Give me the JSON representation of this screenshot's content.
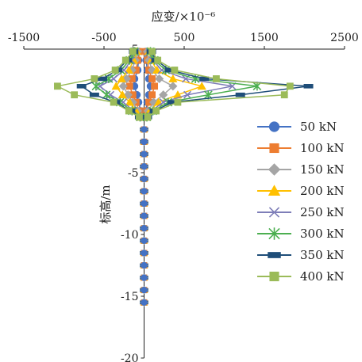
{
  "chart_data": {
    "type": "line",
    "xlabel": "应变/×10⁻⁶",
    "ylabel": "标高/m",
    "xlim": [
      -1500,
      2500
    ],
    "ylim": [
      -20,
      5
    ],
    "x_ticks": [
      "-1500",
      "-500",
      "500",
      "1500",
      "2500"
    ],
    "y_ticks": [
      "5",
      "0",
      "-5",
      "-10",
      "-15",
      "-20"
    ],
    "x_tick_values": [
      -1500,
      -500,
      500,
      1500,
      2500
    ],
    "y_tick_values": [
      5,
      0,
      -5,
      -10,
      -15,
      -20
    ],
    "legend_position": "right",
    "grid": false,
    "series": [
      {
        "name": "50 kN",
        "color": "#4472C4",
        "marker": "circle",
        "left": [
          [
            -60,
            4.8
          ],
          [
            -70,
            4.1
          ],
          [
            -80,
            3.3
          ],
          [
            -120,
            2.6
          ],
          [
            -120,
            2.0
          ],
          [
            -90,
            1.3
          ],
          [
            -70,
            0.7
          ],
          [
            -40,
            0.0
          ],
          [
            -20,
            -0.5
          ]
        ],
        "right": [
          [
            20,
            4.8
          ],
          [
            25,
            4.1
          ],
          [
            40,
            3.3
          ],
          [
            60,
            2.6
          ],
          [
            80,
            2.0
          ],
          [
            60,
            1.3
          ],
          [
            40,
            0.7
          ],
          [
            20,
            0.0
          ],
          [
            10,
            -0.5
          ]
        ]
      },
      {
        "name": "100 kN",
        "color": "#ED7D31",
        "marker": "square",
        "left": [
          [
            -60,
            4.8
          ],
          [
            -80,
            4.1
          ],
          [
            -100,
            3.3
          ],
          [
            -150,
            2.6
          ],
          [
            -180,
            2.0
          ],
          [
            -140,
            1.3
          ],
          [
            -100,
            0.7
          ],
          [
            -60,
            0.0
          ],
          [
            -25,
            -0.5
          ]
        ],
        "right": [
          [
            30,
            4.8
          ],
          [
            40,
            4.1
          ],
          [
            60,
            3.3
          ],
          [
            100,
            2.6
          ],
          [
            130,
            2.0
          ],
          [
            100,
            1.3
          ],
          [
            60,
            0.7
          ],
          [
            30,
            0.0
          ],
          [
            15,
            -0.5
          ]
        ]
      },
      {
        "name": "150 kN",
        "color": "#A5A5A5",
        "marker": "diamond",
        "left": [
          [
            -80,
            4.8
          ],
          [
            -110,
            4.1
          ],
          [
            -150,
            3.3
          ],
          [
            -220,
            2.6
          ],
          [
            -260,
            2.0
          ],
          [
            -200,
            1.3
          ],
          [
            -140,
            0.7
          ],
          [
            -80,
            0.0
          ],
          [
            -35,
            -0.5
          ]
        ],
        "right": [
          [
            40,
            4.8
          ],
          [
            60,
            4.1
          ],
          [
            100,
            3.3
          ],
          [
            190,
            2.6
          ],
          [
            360,
            2.0
          ],
          [
            240,
            1.3
          ],
          [
            120,
            0.7
          ],
          [
            50,
            0.0
          ],
          [
            20,
            -0.5
          ]
        ]
      },
      {
        "name": "200 kN",
        "color": "#FFC000",
        "marker": "triangle",
        "left": [
          [
            -90,
            4.8
          ],
          [
            -130,
            4.1
          ],
          [
            -190,
            3.3
          ],
          [
            -280,
            2.6
          ],
          [
            -350,
            2.0
          ],
          [
            -270,
            1.3
          ],
          [
            -180,
            0.7
          ],
          [
            -100,
            0.0
          ],
          [
            -40,
            -0.5
          ]
        ],
        "right": [
          [
            60,
            4.8
          ],
          [
            90,
            4.1
          ],
          [
            160,
            3.3
          ],
          [
            360,
            2.6
          ],
          [
            720,
            2.0
          ],
          [
            420,
            1.3
          ],
          [
            180,
            0.7
          ],
          [
            70,
            0.0
          ],
          [
            25,
            -0.5
          ]
        ]
      },
      {
        "name": "250 kN",
        "color": "#7E7EB8",
        "marker": "x",
        "left": [
          [
            -110,
            4.8
          ],
          [
            -160,
            4.1
          ],
          [
            -250,
            3.3
          ],
          [
            -380,
            2.6
          ],
          [
            -550,
            2.0
          ],
          [
            -420,
            1.3
          ],
          [
            -260,
            0.7
          ],
          [
            -130,
            0.0
          ],
          [
            -45,
            -0.5
          ]
        ],
        "right": [
          [
            70,
            4.8
          ],
          [
            110,
            4.1
          ],
          [
            220,
            3.3
          ],
          [
            520,
            2.6
          ],
          [
            1100,
            2.0
          ],
          [
            540,
            1.3
          ],
          [
            240,
            0.7
          ],
          [
            90,
            0.0
          ],
          [
            30,
            -0.5
          ]
        ]
      },
      {
        "name": "300 kN",
        "color": "#4CAF50",
        "marker": "star",
        "left": [
          [
            -120,
            4.8
          ],
          [
            -180,
            4.1
          ],
          [
            -290,
            3.3
          ],
          [
            -440,
            2.6
          ],
          [
            -600,
            2.0
          ],
          [
            -470,
            1.3
          ],
          [
            -300,
            0.7
          ],
          [
            -150,
            0.0
          ],
          [
            -50,
            -0.5
          ]
        ],
        "right": [
          [
            80,
            4.8
          ],
          [
            130,
            4.1
          ],
          [
            270,
            3.3
          ],
          [
            640,
            2.6
          ],
          [
            1410,
            2.0
          ],
          [
            800,
            1.3
          ],
          [
            300,
            0.7
          ],
          [
            110,
            0.0
          ],
          [
            35,
            -0.5
          ]
        ]
      },
      {
        "name": "350 kN",
        "color": "#1F4E79",
        "marker": "bar",
        "left": [
          [
            -130,
            4.8
          ],
          [
            -210,
            4.1
          ],
          [
            -330,
            3.3
          ],
          [
            -520,
            2.6
          ],
          [
            -780,
            2.0
          ],
          [
            -620,
            1.3
          ],
          [
            -360,
            0.7
          ],
          [
            -170,
            0.0
          ],
          [
            -55,
            -0.5
          ]
        ],
        "right": [
          [
            90,
            4.8
          ],
          [
            150,
            4.1
          ],
          [
            320,
            3.3
          ],
          [
            750,
            2.6
          ],
          [
            2050,
            2.0
          ],
          [
            1200,
            1.3
          ],
          [
            350,
            0.7
          ],
          [
            130,
            0.0
          ],
          [
            40,
            -0.5
          ]
        ]
      },
      {
        "name": "400 kN",
        "color": "#9BBB59",
        "marker": "square",
        "left": [
          [
            -140,
            4.8
          ],
          [
            -230,
            4.1
          ],
          [
            -360,
            3.3
          ],
          [
            -620,
            2.6
          ],
          [
            -1080,
            2.0
          ],
          [
            -870,
            1.3
          ],
          [
            -380,
            0.7
          ],
          [
            -190,
            0.0
          ],
          [
            -60,
            -0.5
          ]
        ],
        "right": [
          [
            100,
            4.8
          ],
          [
            170,
            4.1
          ],
          [
            380,
            3.3
          ],
          [
            900,
            2.6
          ],
          [
            1820,
            2.0
          ],
          [
            1750,
            1.3
          ],
          [
            420,
            0.7
          ],
          [
            150,
            0.0
          ],
          [
            45,
            -0.5
          ]
        ]
      }
    ],
    "pile_shaft_marks": {
      "elevations": [
        -1.5,
        -2.5,
        -3.5,
        -4.5,
        -5.5,
        -6.5,
        -7.5,
        -8.5,
        -9.5,
        -10.5,
        -11.5,
        -12.5,
        -13.5,
        -14.5,
        -15.5
      ],
      "strain": 0
    }
  }
}
